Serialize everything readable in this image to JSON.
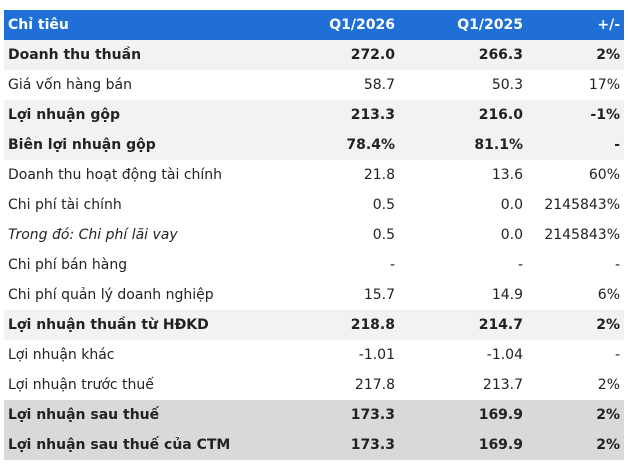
{
  "table": {
    "header": [
      "Chỉ tiêu",
      "Q1/2026",
      "Q1/2025",
      "+/-"
    ],
    "rows": [
      [
        "Doanh thu thuần",
        "272.0",
        "266.3",
        "2%"
      ],
      [
        "Giá vốn hàng bán",
        "58.7",
        "50.3",
        "17%"
      ],
      [
        "Lợi nhuận gộp",
        "213.3",
        "216.0",
        "-1%"
      ],
      [
        "Biên lợi nhuận gộp",
        "78.4%",
        "81.1%",
        "-"
      ],
      [
        "Doanh thu hoạt động tài chính",
        "21.8",
        "13.6",
        "60%"
      ],
      [
        "Chi phí tài chính",
        "0.5",
        "0.0",
        "2145843%"
      ],
      [
        "Trong đó: Chi phí lãi vay",
        "0.5",
        "0.0",
        "2145843%"
      ],
      [
        "Chi phí bán hàng",
        "-",
        "-",
        "-"
      ],
      [
        "Chi phí quản lý doanh nghiệp",
        "15.7",
        "14.9",
        "6%"
      ],
      [
        "Lợi nhuận thuần từ HĐKD",
        "218.8",
        "214.7",
        "2%"
      ],
      [
        "Lợi nhuận khác",
        "-1.01",
        "-1.04",
        "-"
      ],
      [
        "Lợi nhuận trước thuế",
        "217.8",
        "213.7",
        "2%"
      ],
      [
        "Lợi nhuận sau thuế",
        "173.3",
        "169.9",
        "2%"
      ],
      [
        "Lợi nhuận sau thuế của CTM",
        "173.3",
        "169.9",
        "2%"
      ]
    ]
  }
}
